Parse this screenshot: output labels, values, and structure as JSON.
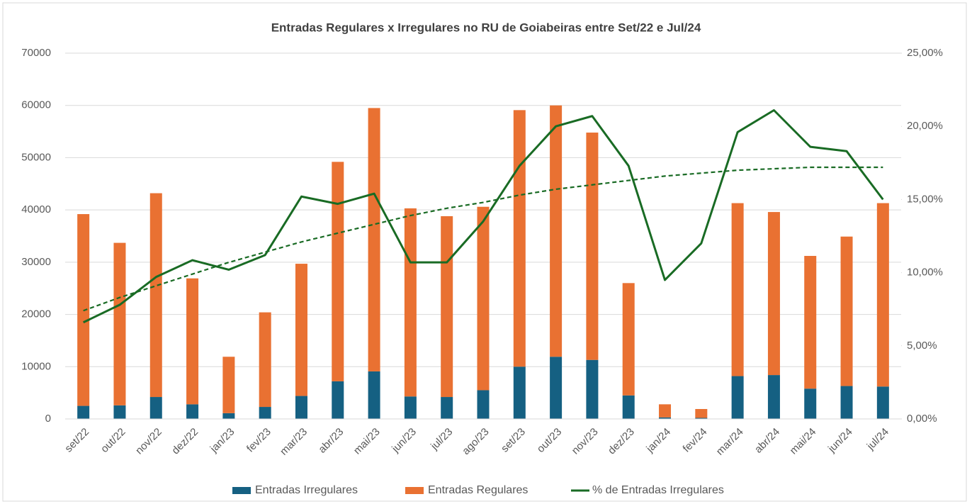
{
  "chart_data": {
    "type": "bar",
    "stacked": true,
    "title": "Entradas Regulares x Irregulares no RU de Goiabeiras entre Set/22 e Jul/24",
    "categories": [
      "set/22",
      "out/22",
      "nov/22",
      "dez/22",
      "jan/23",
      "fev/23",
      "mar/23",
      "abr/23",
      "mai/23",
      "jun/23",
      "jul/23",
      "ago/23",
      "set/23",
      "out/23",
      "nov/23",
      "dez/23",
      "jan/24",
      "fev/24",
      "mar/24",
      "abr/24",
      "mai/24",
      "jun/24",
      "jul/24"
    ],
    "series": [
      {
        "name": "Entradas Irregulares",
        "type": "bar",
        "color": "#156082",
        "values": [
          2500,
          2600,
          4200,
          2800,
          1100,
          2300,
          4400,
          7200,
          9100,
          4300,
          4200,
          5500,
          10000,
          11900,
          11300,
          4500,
          300,
          200,
          8200,
          8400,
          5800,
          6300,
          6200
        ]
      },
      {
        "name": "Entradas Regulares",
        "type": "bar",
        "color": "#e97132",
        "values": [
          36700,
          31100,
          39000,
          24100,
          10800,
          18100,
          25300,
          42000,
          50400,
          36000,
          34600,
          35100,
          49100,
          48100,
          43500,
          21500,
          2500,
          1700,
          33100,
          31200,
          25400,
          28600,
          35100
        ]
      },
      {
        "name": "% de Entradas Irregulares",
        "type": "line",
        "axis": "y2",
        "color": "#196b24",
        "values": [
          6.6,
          7.8,
          9.7,
          10.85,
          10.2,
          11.2,
          15.2,
          14.7,
          15.4,
          10.7,
          10.7,
          13.5,
          17.3,
          20.0,
          20.7,
          17.3,
          9.5,
          12.0,
          19.6,
          21.1,
          18.6,
          18.3,
          15.0
        ]
      }
    ],
    "trendline": {
      "axis": "y2",
      "color": "#196b24",
      "dashed": true,
      "values": [
        7.4,
        8.3,
        9.1,
        9.9,
        10.7,
        11.4,
        12.1,
        12.7,
        13.3,
        13.9,
        14.4,
        14.8,
        15.3,
        15.7,
        16.0,
        16.3,
        16.6,
        16.8,
        17.0,
        17.1,
        17.2,
        17.2,
        17.2
      ]
    },
    "ylim": [
      0,
      70000
    ],
    "yticks": [
      0,
      10000,
      20000,
      30000,
      40000,
      50000,
      60000,
      70000
    ],
    "y2lim": [
      0,
      25
    ],
    "y2ticks": [
      {
        "value": 0,
        "label": "0,00%"
      },
      {
        "value": 5,
        "label": "5,00%"
      },
      {
        "value": 10,
        "label": "10,00%"
      },
      {
        "value": 15,
        "label": "15,00%"
      },
      {
        "value": 20,
        "label": "20,00%"
      },
      {
        "value": 25,
        "label": "25,00%"
      }
    ],
    "grid": true,
    "legend": "bottom"
  }
}
